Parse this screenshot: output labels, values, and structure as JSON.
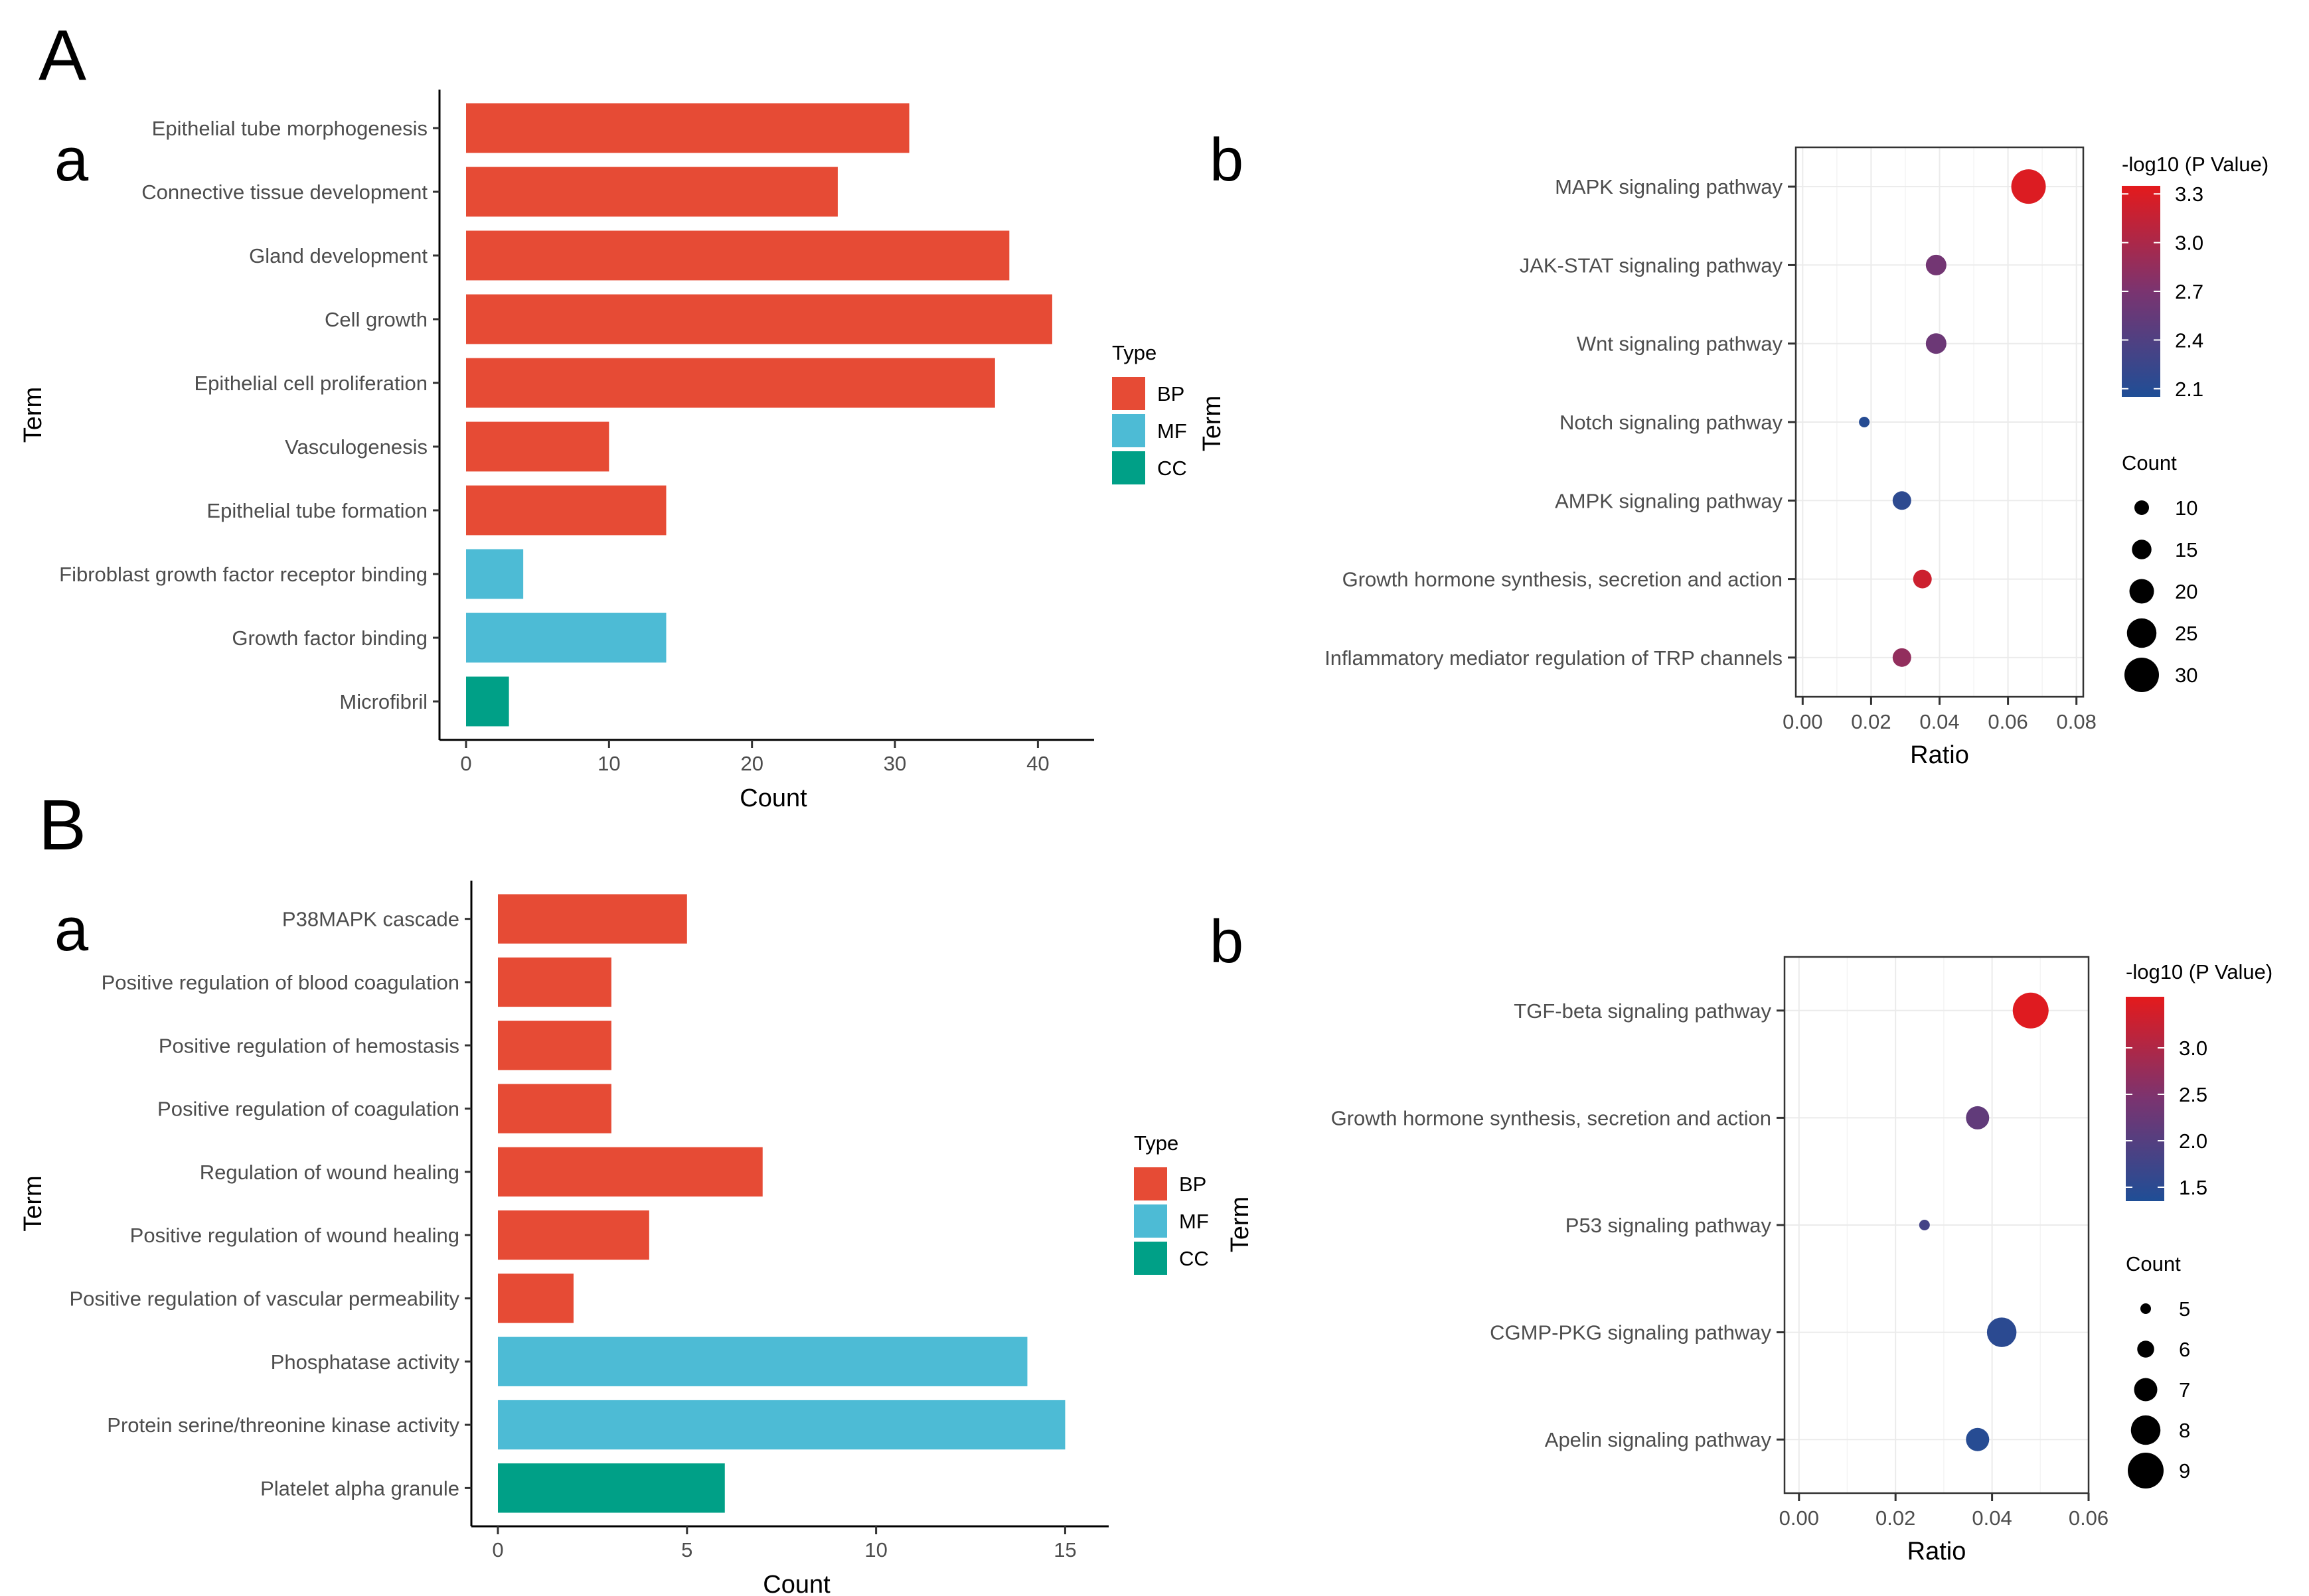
{
  "panels": {
    "A": "A",
    "B": "B",
    "sub_a": "a",
    "sub_b": "b"
  },
  "colors": {
    "BP": "#E64B35",
    "MF": "#4DBBD5",
    "CC": "#00A087",
    "gradient_high": "#E41A1C",
    "gradient_low": "#1F4E96"
  },
  "chart_data": [
    {
      "id": "A_a",
      "type": "bar",
      "orientation": "horizontal",
      "xlabel": "Count",
      "ylabel": "Term",
      "xlim": [
        0,
        43
      ],
      "xticks": [
        0,
        10,
        20,
        30,
        40
      ],
      "categories": [
        "Epithelial tube morphogenesis",
        "Connective tissue development",
        "Gland development",
        "Cell growth",
        "Epithelial cell proliferation",
        "Vasculogenesis",
        "Epithelial tube formation",
        "Fibroblast growth factor receptor binding",
        "Growth factor binding",
        "Microfibril"
      ],
      "values": [
        31,
        26,
        38,
        41,
        37,
        10,
        14,
        4,
        14,
        3
      ],
      "types": [
        "BP",
        "BP",
        "BP",
        "BP",
        "BP",
        "BP",
        "BP",
        "MF",
        "MF",
        "CC"
      ],
      "legend": {
        "title": "Type",
        "entries": [
          "BP",
          "MF",
          "CC"
        ],
        "position": "right"
      }
    },
    {
      "id": "A_b",
      "type": "scatter",
      "xlabel": "Ratio",
      "ylabel": "Term",
      "xlim": [
        -0.002,
        0.082
      ],
      "xticks": [
        "0.00",
        "0.02",
        "0.04",
        "0.06",
        "0.08"
      ],
      "xtick_values": [
        0,
        0.02,
        0.04,
        0.06,
        0.08
      ],
      "categories": [
        "MAPK signaling pathway",
        "JAK-STAT signaling pathway",
        "Wnt signaling pathway",
        "Notch signaling pathway",
        "AMPK signaling pathway",
        "Growth hormone synthesis, secretion and action",
        "Inflammatory mediator regulation of TRP channels"
      ],
      "x": [
        0.066,
        0.039,
        0.039,
        0.018,
        0.029,
        0.035,
        0.029
      ],
      "count": [
        30,
        16,
        16,
        6,
        14,
        14,
        14
      ],
      "pvalue": [
        3.3,
        2.65,
        2.6,
        2.1,
        2.15,
        3.2,
        2.85
      ],
      "color_legend": {
        "title": "-log10 (P Value)",
        "range": [
          2.05,
          3.35
        ],
        "ticks": [
          "3.3",
          "3.0",
          "2.7",
          "2.4",
          "2.1"
        ],
        "tick_values": [
          3.3,
          3.0,
          2.7,
          2.4,
          2.1
        ]
      },
      "size_legend": {
        "title": "Count",
        "entries": [
          "10",
          "15",
          "20",
          "25",
          "30"
        ],
        "values": [
          10,
          15,
          20,
          25,
          30
        ]
      }
    },
    {
      "id": "B_a",
      "type": "bar",
      "orientation": "horizontal",
      "xlabel": "Count",
      "ylabel": "Term",
      "xlim": [
        0,
        15.8
      ],
      "xticks": [
        0,
        5,
        10,
        15
      ],
      "categories": [
        "P38MAPK cascade",
        "Positive regulation of blood coagulation",
        "Positive regulation of hemostasis",
        "Positive regulation of coagulation",
        "Regulation of wound healing",
        "Positive regulation of wound healing",
        "Positive regulation of vascular permeability",
        "Phosphatase activity",
        "Protein serine/threonine kinase activity",
        "Platelet alpha granule"
      ],
      "values": [
        5,
        3,
        3,
        3,
        7,
        4,
        2,
        14,
        15,
        6
      ],
      "types": [
        "BP",
        "BP",
        "BP",
        "BP",
        "BP",
        "BP",
        "BP",
        "MF",
        "MF",
        "CC"
      ],
      "legend": {
        "title": "Type",
        "entries": [
          "BP",
          "MF",
          "CC"
        ],
        "position": "right"
      }
    },
    {
      "id": "B_b",
      "type": "scatter",
      "xlabel": "Ratio",
      "ylabel": "Term",
      "xlim": [
        -0.003,
        0.06
      ],
      "xticks": [
        "0.00",
        "0.02",
        "0.04",
        "0.06"
      ],
      "xtick_values": [
        0,
        0.02,
        0.04,
        0.06
      ],
      "categories": [
        "TGF-beta signaling pathway",
        "Growth hormone synthesis, secretion and action",
        "P53 signaling pathway",
        "CGMP-PKG signaling pathway",
        "Apelin signaling pathway"
      ],
      "x": [
        0.048,
        0.037,
        0.026,
        0.042,
        0.037
      ],
      "count": [
        9,
        7,
        5,
        8,
        7
      ],
      "pvalue": [
        3.5,
        2.15,
        1.8,
        1.5,
        1.45
      ],
      "color_legend": {
        "title": "-log10 (P Value)",
        "range": [
          1.35,
          3.55
        ],
        "ticks": [
          "3.0",
          "2.5",
          "2.0",
          "1.5"
        ],
        "tick_values": [
          3.0,
          2.5,
          2.0,
          1.5
        ]
      },
      "size_legend": {
        "title": "Count",
        "entries": [
          "5",
          "6",
          "7",
          "8",
          "9"
        ],
        "values": [
          5,
          6,
          7,
          8,
          9
        ]
      }
    }
  ]
}
